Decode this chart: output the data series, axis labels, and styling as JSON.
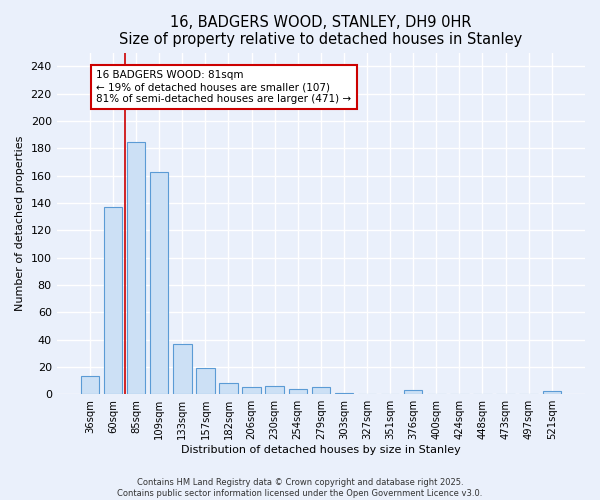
{
  "title": "16, BADGERS WOOD, STANLEY, DH9 0HR",
  "subtitle": "Size of property relative to detached houses in Stanley",
  "xlabel": "Distribution of detached houses by size in Stanley",
  "ylabel": "Number of detached properties",
  "categories": [
    "36sqm",
    "60sqm",
    "85sqm",
    "109sqm",
    "133sqm",
    "157sqm",
    "182sqm",
    "206sqm",
    "230sqm",
    "254sqm",
    "279sqm",
    "303sqm",
    "327sqm",
    "351sqm",
    "376sqm",
    "400sqm",
    "424sqm",
    "448sqm",
    "473sqm",
    "497sqm",
    "521sqm"
  ],
  "values": [
    13,
    137,
    185,
    163,
    37,
    19,
    8,
    5,
    6,
    4,
    5,
    1,
    0,
    0,
    3,
    0,
    0,
    0,
    0,
    0,
    2
  ],
  "bar_color": "#cce0f5",
  "bar_edge_color": "#5b9bd5",
  "background_color": "#eaf0fb",
  "grid_color": "#ffffff",
  "red_line_x": 1.5,
  "annotation_text": "16 BADGERS WOOD: 81sqm\n← 19% of detached houses are smaller (107)\n81% of semi-detached houses are larger (471) →",
  "annotation_box_color": "#ffffff",
  "annotation_box_edge": "#cc0000",
  "ylim": [
    0,
    250
  ],
  "yticks": [
    0,
    20,
    40,
    60,
    80,
    100,
    120,
    140,
    160,
    180,
    200,
    220,
    240
  ],
  "footer_line1": "Contains HM Land Registry data © Crown copyright and database right 2025.",
  "footer_line2": "Contains public sector information licensed under the Open Government Licence v3.0."
}
